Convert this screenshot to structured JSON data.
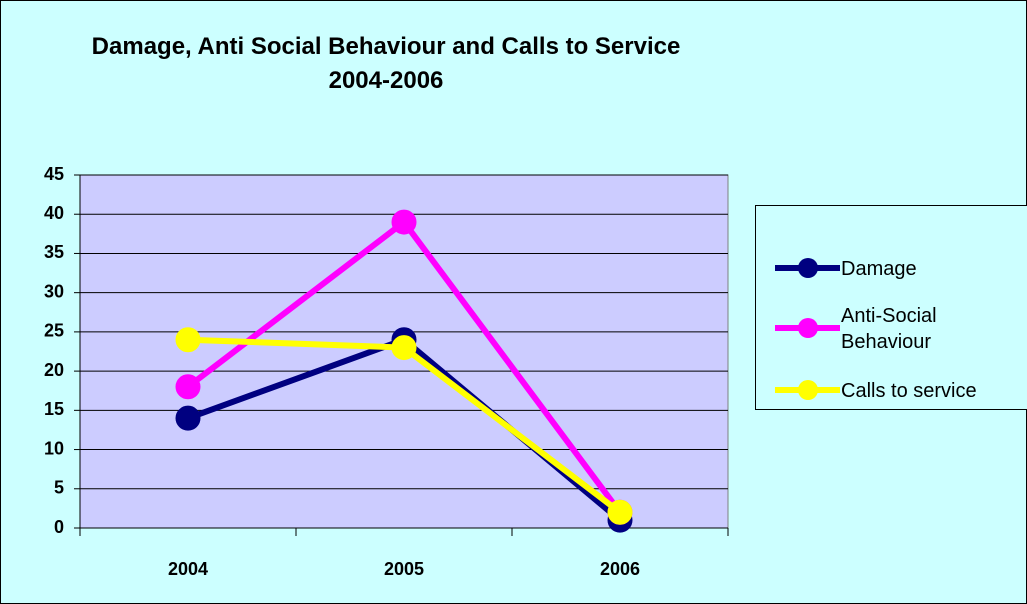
{
  "chart_data": {
    "type": "line",
    "title": "Damage, Anti Social Behaviour and Calls to Service 2004-2006",
    "categories": [
      "2004",
      "2005",
      "2006"
    ],
    "series": [
      {
        "name": "Damage",
        "color": "#000080",
        "values": [
          14,
          24,
          1
        ]
      },
      {
        "name": "Anti-Social Behaviour",
        "color": "#ff00ff",
        "values": [
          18,
          39,
          2
        ]
      },
      {
        "name": "Calls to service",
        "color": "#ffff00",
        "values": [
          24,
          23,
          2
        ]
      }
    ],
    "ylim": [
      0,
      45
    ],
    "yticks": [
      0,
      5,
      10,
      15,
      20,
      25,
      30,
      35,
      40,
      45
    ],
    "grid": true,
    "legend": "right"
  }
}
